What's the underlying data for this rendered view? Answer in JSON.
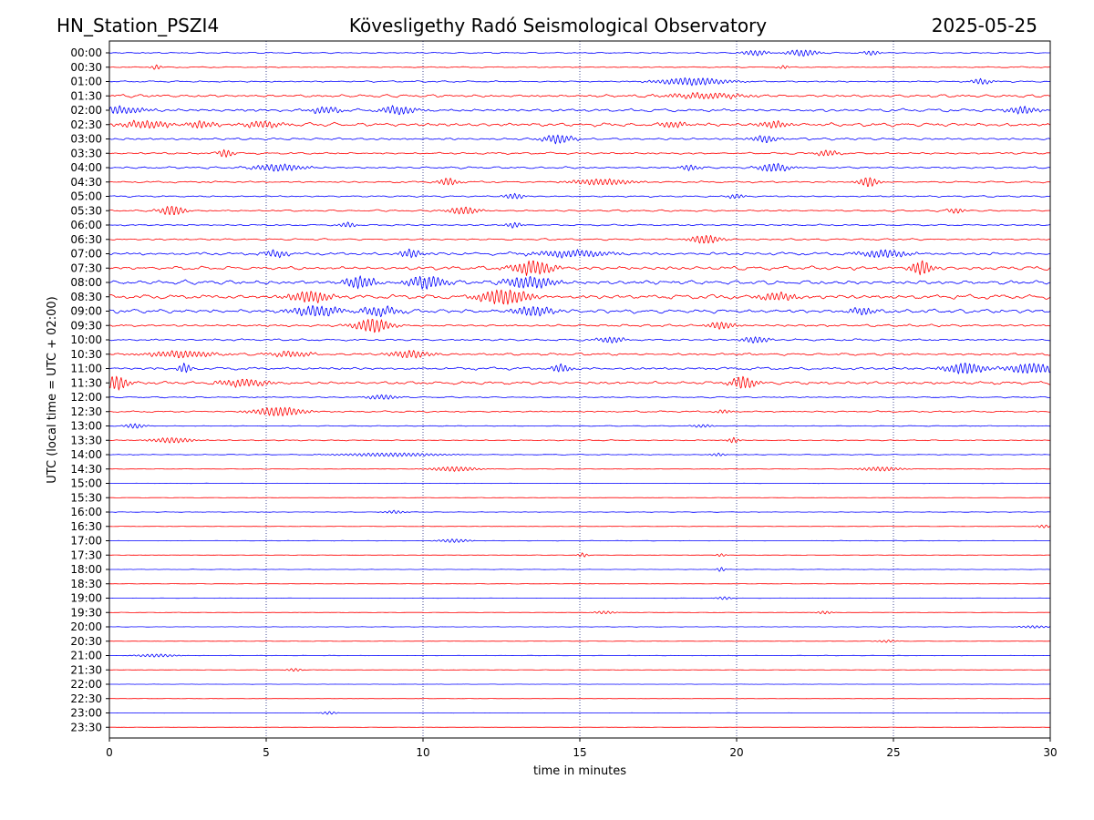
{
  "header": {
    "station": "HN_Station_PSZI4",
    "observatory": "Kövesligethy Radó Seismological Observatory",
    "date": "2025-05-25"
  },
  "chart_data": {
    "type": "line",
    "title": "Kövesligethy Radó Seismological Observatory",
    "xlabel": "time in minutes",
    "ylabel": "UTC (local time = UTC + 02:00)",
    "xlim": [
      0,
      30
    ],
    "x_ticks": [
      0,
      5,
      10,
      15,
      20,
      25,
      30
    ],
    "grid": "vertical dotted lines at 5, 10, 15, 20, 25 minutes",
    "colors": {
      "even_rows": "#0000ff",
      "odd_rows": "#ff0000",
      "grid": "#1a237e"
    },
    "rows": [
      {
        "label": "00:00",
        "amp": 0.25,
        "events": [
          {
            "t": 20.6,
            "a": 0.9,
            "d": 0.5
          },
          {
            "t": 22.1,
            "a": 1.1,
            "d": 0.6
          },
          {
            "t": 24.3,
            "a": 0.8,
            "d": 0.3
          }
        ]
      },
      {
        "label": "00:30",
        "amp": 0.2,
        "events": [
          {
            "t": 1.5,
            "a": 0.8,
            "d": 0.2
          },
          {
            "t": 21.5,
            "a": 0.6,
            "d": 0.2
          }
        ]
      },
      {
        "label": "01:00",
        "amp": 0.3,
        "events": [
          {
            "t": 18.6,
            "a": 1.2,
            "d": 1.4
          },
          {
            "t": 27.8,
            "a": 0.9,
            "d": 0.4
          }
        ]
      },
      {
        "label": "01:30",
        "amp": 0.55,
        "events": [
          {
            "t": 19.0,
            "a": 0.9,
            "d": 1.5
          }
        ]
      },
      {
        "label": "02:00",
        "amp": 0.6,
        "events": [
          {
            "t": 0.3,
            "a": 1.2,
            "d": 1.0
          },
          {
            "t": 6.9,
            "a": 1.1,
            "d": 0.6
          },
          {
            "t": 9.2,
            "a": 1.3,
            "d": 0.7
          },
          {
            "t": 29.1,
            "a": 1.2,
            "d": 0.6
          }
        ]
      },
      {
        "label": "02:30",
        "amp": 0.7,
        "events": [
          {
            "t": 1.2,
            "a": 1.2,
            "d": 1.0
          },
          {
            "t": 2.9,
            "a": 1.1,
            "d": 0.6
          },
          {
            "t": 4.9,
            "a": 1.0,
            "d": 0.8
          },
          {
            "t": 18.0,
            "a": 1.0,
            "d": 0.5
          },
          {
            "t": 21.2,
            "a": 1.1,
            "d": 0.6
          }
        ]
      },
      {
        "label": "03:00",
        "amp": 0.45,
        "events": [
          {
            "t": 14.3,
            "a": 1.4,
            "d": 0.6
          },
          {
            "t": 20.9,
            "a": 1.1,
            "d": 0.5
          }
        ]
      },
      {
        "label": "03:30",
        "amp": 0.4,
        "events": [
          {
            "t": 3.7,
            "a": 1.3,
            "d": 0.3
          },
          {
            "t": 22.9,
            "a": 1.0,
            "d": 0.4
          }
        ]
      },
      {
        "label": "04:00",
        "amp": 0.4,
        "events": [
          {
            "t": 5.4,
            "a": 1.1,
            "d": 1.0
          },
          {
            "t": 21.2,
            "a": 1.4,
            "d": 0.6
          },
          {
            "t": 18.5,
            "a": 0.9,
            "d": 0.4
          }
        ]
      },
      {
        "label": "04:30",
        "amp": 0.35,
        "events": [
          {
            "t": 10.8,
            "a": 1.2,
            "d": 0.4
          },
          {
            "t": 15.7,
            "a": 1.0,
            "d": 1.2
          },
          {
            "t": 24.2,
            "a": 1.6,
            "d": 0.4
          }
        ]
      },
      {
        "label": "05:00",
        "amp": 0.3,
        "events": [
          {
            "t": 12.9,
            "a": 0.9,
            "d": 0.4
          },
          {
            "t": 20.0,
            "a": 0.8,
            "d": 0.3
          }
        ]
      },
      {
        "label": "05:30",
        "amp": 0.35,
        "events": [
          {
            "t": 2.0,
            "a": 1.6,
            "d": 0.5
          },
          {
            "t": 11.3,
            "a": 1.2,
            "d": 0.6
          },
          {
            "t": 27.0,
            "a": 0.9,
            "d": 0.3
          }
        ]
      },
      {
        "label": "06:00",
        "amp": 0.3,
        "events": [
          {
            "t": 7.6,
            "a": 0.9,
            "d": 0.3
          },
          {
            "t": 12.9,
            "a": 0.9,
            "d": 0.3
          }
        ]
      },
      {
        "label": "06:30",
        "amp": 0.35,
        "events": [
          {
            "t": 19.0,
            "a": 1.4,
            "d": 0.6
          }
        ]
      },
      {
        "label": "07:00",
        "amp": 0.6,
        "events": [
          {
            "t": 5.3,
            "a": 1.1,
            "d": 0.5
          },
          {
            "t": 9.6,
            "a": 1.4,
            "d": 0.4
          },
          {
            "t": 14.8,
            "a": 1.1,
            "d": 1.5
          },
          {
            "t": 24.7,
            "a": 1.2,
            "d": 1.0
          }
        ]
      },
      {
        "label": "07:30",
        "amp": 0.75,
        "events": [
          {
            "t": 13.5,
            "a": 2.3,
            "d": 0.8
          },
          {
            "t": 25.9,
            "a": 2.4,
            "d": 0.4
          }
        ]
      },
      {
        "label": "08:00",
        "amp": 0.85,
        "events": [
          {
            "t": 8.0,
            "a": 2.0,
            "d": 0.6
          },
          {
            "t": 10.1,
            "a": 2.0,
            "d": 0.8
          },
          {
            "t": 13.4,
            "a": 1.9,
            "d": 1.0
          }
        ]
      },
      {
        "label": "08:30",
        "amp": 0.85,
        "events": [
          {
            "t": 6.4,
            "a": 1.8,
            "d": 0.8
          },
          {
            "t": 12.6,
            "a": 2.5,
            "d": 1.0
          },
          {
            "t": 21.3,
            "a": 1.3,
            "d": 0.7
          }
        ]
      },
      {
        "label": "09:00",
        "amp": 0.8,
        "events": [
          {
            "t": 6.6,
            "a": 1.7,
            "d": 1.0
          },
          {
            "t": 8.6,
            "a": 1.5,
            "d": 0.8
          },
          {
            "t": 13.5,
            "a": 1.5,
            "d": 0.8
          },
          {
            "t": 24.0,
            "a": 1.2,
            "d": 0.5
          }
        ]
      },
      {
        "label": "09:30",
        "amp": 0.45,
        "events": [
          {
            "t": 8.4,
            "a": 2.3,
            "d": 0.7
          },
          {
            "t": 19.5,
            "a": 1.2,
            "d": 0.5
          }
        ]
      },
      {
        "label": "10:00",
        "amp": 0.4,
        "events": [
          {
            "t": 16.0,
            "a": 1.0,
            "d": 0.5
          },
          {
            "t": 20.6,
            "a": 1.1,
            "d": 0.5
          }
        ]
      },
      {
        "label": "10:30",
        "amp": 0.5,
        "events": [
          {
            "t": 2.3,
            "a": 1.1,
            "d": 1.3
          },
          {
            "t": 9.6,
            "a": 1.2,
            "d": 0.8
          },
          {
            "t": 5.8,
            "a": 0.9,
            "d": 0.8
          }
        ]
      },
      {
        "label": "11:00",
        "amp": 0.55,
        "events": [
          {
            "t": 2.4,
            "a": 1.4,
            "d": 0.3
          },
          {
            "t": 14.4,
            "a": 1.3,
            "d": 0.4
          },
          {
            "t": 27.3,
            "a": 1.8,
            "d": 0.8
          },
          {
            "t": 29.4,
            "a": 1.6,
            "d": 1.0
          }
        ]
      },
      {
        "label": "11:30",
        "amp": 0.6,
        "events": [
          {
            "t": 0.2,
            "a": 2.3,
            "d": 0.5
          },
          {
            "t": 20.2,
            "a": 2.0,
            "d": 0.5
          },
          {
            "t": 4.3,
            "a": 1.2,
            "d": 1.0
          }
        ]
      },
      {
        "label": "12:00",
        "amp": 0.25,
        "events": [
          {
            "t": 8.7,
            "a": 0.8,
            "d": 0.6
          }
        ]
      },
      {
        "label": "12:30",
        "amp": 0.3,
        "events": [
          {
            "t": 5.4,
            "a": 1.5,
            "d": 1.0
          },
          {
            "t": 19.6,
            "a": 0.6,
            "d": 0.3
          }
        ]
      },
      {
        "label": "13:00",
        "amp": 0.15,
        "events": [
          {
            "t": 0.8,
            "a": 0.8,
            "d": 0.4
          },
          {
            "t": 18.9,
            "a": 0.5,
            "d": 0.4
          }
        ]
      },
      {
        "label": "13:30",
        "amp": 0.2,
        "events": [
          {
            "t": 2.0,
            "a": 0.9,
            "d": 0.8
          },
          {
            "t": 19.9,
            "a": 1.0,
            "d": 0.2
          }
        ]
      },
      {
        "label": "14:00",
        "amp": 0.15,
        "events": [
          {
            "t": 9.0,
            "a": 0.6,
            "d": 2.0
          },
          {
            "t": 19.4,
            "a": 0.5,
            "d": 0.3
          }
        ]
      },
      {
        "label": "14:30",
        "amp": 0.1,
        "events": [
          {
            "t": 11.0,
            "a": 0.8,
            "d": 0.9
          },
          {
            "t": 24.6,
            "a": 0.7,
            "d": 0.8
          }
        ]
      },
      {
        "label": "15:00",
        "amp": 0.07,
        "events": []
      },
      {
        "label": "15:30",
        "amp": 0.07,
        "events": []
      },
      {
        "label": "16:00",
        "amp": 0.1,
        "events": [
          {
            "t": 9.1,
            "a": 0.5,
            "d": 0.4
          }
        ]
      },
      {
        "label": "16:30",
        "amp": 0.08,
        "events": [
          {
            "t": 29.8,
            "a": 0.5,
            "d": 0.3
          }
        ]
      },
      {
        "label": "17:00",
        "amp": 0.1,
        "events": [
          {
            "t": 11.0,
            "a": 0.6,
            "d": 0.6
          }
        ]
      },
      {
        "label": "17:30",
        "amp": 0.08,
        "events": [
          {
            "t": 15.1,
            "a": 0.7,
            "d": 0.2
          },
          {
            "t": 19.5,
            "a": 0.5,
            "d": 0.2
          }
        ]
      },
      {
        "label": "18:00",
        "amp": 0.08,
        "events": [
          {
            "t": 19.5,
            "a": 0.8,
            "d": 0.15
          }
        ]
      },
      {
        "label": "18:30",
        "amp": 0.08,
        "events": []
      },
      {
        "label": "19:00",
        "amp": 0.08,
        "events": [
          {
            "t": 19.6,
            "a": 0.5,
            "d": 0.3
          }
        ]
      },
      {
        "label": "19:30",
        "amp": 0.08,
        "events": [
          {
            "t": 15.8,
            "a": 0.5,
            "d": 0.4
          },
          {
            "t": 22.8,
            "a": 0.5,
            "d": 0.3
          }
        ]
      },
      {
        "label": "20:00",
        "amp": 0.08,
        "events": [
          {
            "t": 29.5,
            "a": 0.4,
            "d": 0.6
          }
        ]
      },
      {
        "label": "20:30",
        "amp": 0.08,
        "events": [
          {
            "t": 24.8,
            "a": 0.4,
            "d": 0.4
          }
        ]
      },
      {
        "label": "21:00",
        "amp": 0.1,
        "events": [
          {
            "t": 1.5,
            "a": 0.5,
            "d": 0.8
          }
        ]
      },
      {
        "label": "21:30",
        "amp": 0.07,
        "events": [
          {
            "t": 5.9,
            "a": 0.5,
            "d": 0.3
          }
        ]
      },
      {
        "label": "22:00",
        "amp": 0.05,
        "events": []
      },
      {
        "label": "22:30",
        "amp": 0.05,
        "events": []
      },
      {
        "label": "23:00",
        "amp": 0.06,
        "events": [
          {
            "t": 7.0,
            "a": 0.5,
            "d": 0.3
          }
        ]
      },
      {
        "label": "23:30",
        "amp": 0.05,
        "events": []
      }
    ]
  }
}
